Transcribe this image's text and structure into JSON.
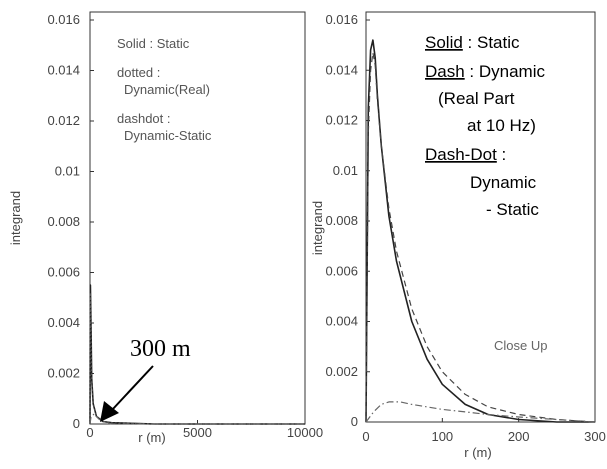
{
  "chart_data": [
    {
      "type": "line",
      "xlabel": "r (m)",
      "ylabel": "integrand",
      "xlim": [
        0,
        10000
      ],
      "ylim": [
        0,
        0.016
      ],
      "x_ticks": [
        "0",
        "5000",
        "10000"
      ],
      "y_ticks": [
        "0",
        "0.002",
        "0.004",
        "0.006",
        "0.008",
        "0.01",
        "0.012",
        "0.014",
        "0.016"
      ],
      "legend_text": [
        "Solid : Static",
        "dotted :",
        "Dynamic(Real)",
        "dashdot :",
        "Dynamic-Static"
      ],
      "annotation": "300 m",
      "series": [
        {
          "name": "Static",
          "style": "solid",
          "x": [
            0,
            20,
            40,
            80,
            150,
            300,
            600,
            1000,
            3000,
            10000
          ],
          "y": [
            0,
            0.0055,
            0.0042,
            0.0018,
            0.0008,
            0.0003,
            0.0001,
            5e-05,
            0,
            0
          ]
        },
        {
          "name": "Dynamic(Real)",
          "style": "dotted",
          "x": [
            0,
            20,
            40,
            80,
            150,
            300,
            600,
            1000,
            3000,
            10000
          ],
          "y": [
            0,
            0.0052,
            0.004,
            0.0017,
            0.0008,
            0.0003,
            0.0001,
            5e-05,
            0,
            0
          ]
        },
        {
          "name": "Dynamic-Static",
          "style": "dashdot",
          "x": [
            0,
            50,
            200,
            400,
            600,
            1000,
            3000,
            10000
          ],
          "y": [
            0,
            0.0003,
            0.0004,
            0.0002,
            0.0001,
            0,
            0,
            0
          ]
        }
      ]
    },
    {
      "type": "line",
      "xlabel": "r (m)",
      "ylabel": "integrand",
      "xlim": [
        0,
        300
      ],
      "ylim": [
        0,
        0.016
      ],
      "x_ticks": [
        "0",
        "100",
        "200",
        "300"
      ],
      "y_ticks": [
        "0",
        "0.002",
        "0.004",
        "0.006",
        "0.008",
        "0.01",
        "0.012",
        "0.014",
        "0.016"
      ],
      "legend_lines": [
        {
          "key": "Solid",
          "rest": " : Static"
        },
        {
          "key": "Dash",
          "rest": " : Dynamic"
        },
        {
          "key": "",
          "rest": "(Real Part"
        },
        {
          "key": "",
          "rest": "at 10 Hz)"
        },
        {
          "key": "Dash-Dot",
          "rest": " :"
        },
        {
          "key": "",
          "rest": "Dynamic"
        },
        {
          "key": "",
          "rest": "- Static"
        }
      ],
      "note": "Close Up",
      "series": [
        {
          "name": "Static",
          "style": "solid",
          "x": [
            0,
            3,
            6,
            9,
            12,
            15,
            20,
            30,
            40,
            60,
            80,
            100,
            130,
            160,
            200,
            250,
            300
          ],
          "y": [
            0,
            0.0125,
            0.0148,
            0.0152,
            0.0145,
            0.013,
            0.011,
            0.0082,
            0.0064,
            0.004,
            0.0025,
            0.0015,
            0.0007,
            0.0003,
            0.0001,
            0,
            0
          ]
        },
        {
          "name": "Dynamic",
          "style": "dash",
          "x": [
            0,
            3,
            6,
            9,
            12,
            15,
            20,
            30,
            40,
            60,
            80,
            100,
            130,
            160,
            200,
            250,
            300
          ],
          "y": [
            0,
            0.0115,
            0.014,
            0.0147,
            0.0142,
            0.0128,
            0.011,
            0.0085,
            0.0068,
            0.0045,
            0.003,
            0.002,
            0.0011,
            0.0006,
            0.0003,
            0.0001,
            0
          ]
        },
        {
          "name": "Dynamic - Static",
          "style": "dashdot",
          "x": [
            0,
            10,
            20,
            30,
            45,
            60,
            80,
            100,
            130,
            160,
            200,
            250,
            300
          ],
          "y": [
            0,
            0.0004,
            0.0007,
            0.0008,
            0.0008,
            0.0007,
            0.0006,
            0.0005,
            0.0004,
            0.0003,
            0.0002,
            0.0001,
            0
          ]
        }
      ]
    }
  ]
}
